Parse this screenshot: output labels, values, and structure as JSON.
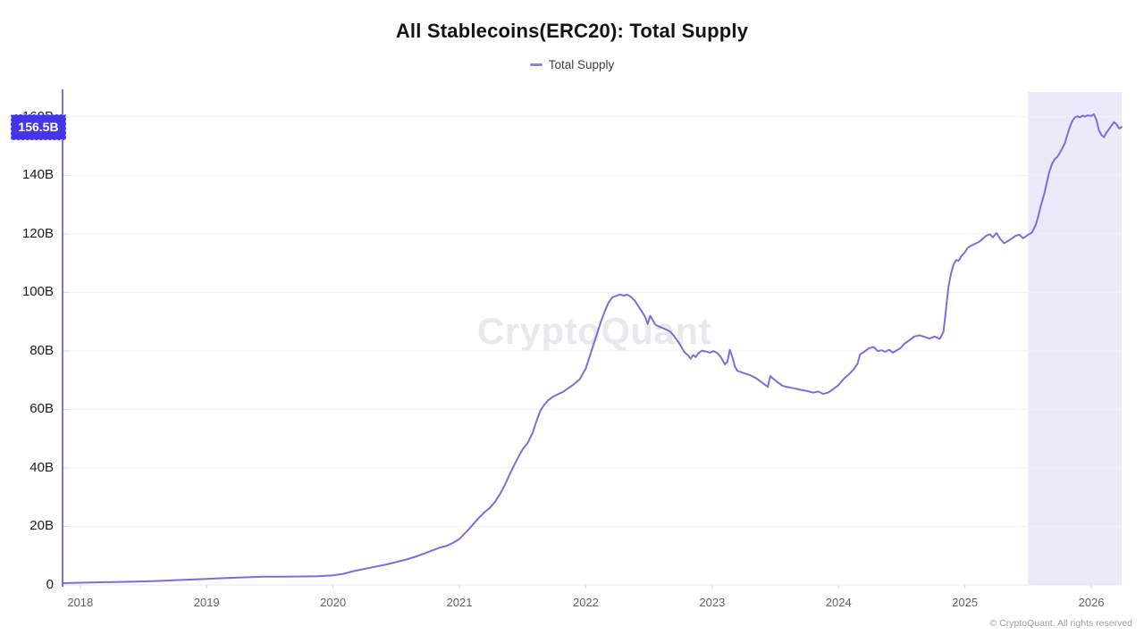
{
  "title": "All Stablecoins(ERC20): Total Supply",
  "legend": {
    "label": "Total Supply",
    "dash_color": "#8a80e8"
  },
  "watermark": "CryptoQuant",
  "footer": "© CryptoQuant. All rights reserved",
  "current_value_badge": {
    "label": "156.5B",
    "value": 156.5,
    "bg": "#4435e8",
    "text_color": "#ffffff"
  },
  "colors": {
    "line": "#7a6fe0",
    "axis_line": "#7d72e2",
    "grid": "#f3f1f5",
    "bottom_line": "#e9e8ee",
    "tick_stub": "#d3d1da",
    "highlight_region": "#ece9fb",
    "y_label": "#1d1d1f",
    "x_label": "#5f6469"
  },
  "chart_data": {
    "type": "line",
    "title": "All Stablecoins(ERC20): Total Supply",
    "unit": "billions (B)",
    "xlabel": "",
    "ylabel": "",
    "grid": "horizontal, very light",
    "legend_position": "top-center",
    "x_domain": [
      2017.86,
      2026.24
    ],
    "y_domain": [
      0,
      169.4
    ],
    "x_ticks": [
      {
        "v": 2018,
        "label": "2018"
      },
      {
        "v": 2019,
        "label": "2019"
      },
      {
        "v": 2020,
        "label": "2020"
      },
      {
        "v": 2021,
        "label": "2021"
      },
      {
        "v": 2022,
        "label": "2022"
      },
      {
        "v": 2023,
        "label": "2023"
      },
      {
        "v": 2024,
        "label": "2024"
      },
      {
        "v": 2025,
        "label": "2025"
      },
      {
        "v": 2026,
        "label": "2026"
      }
    ],
    "y_ticks": [
      {
        "v": 0,
        "label": "0"
      },
      {
        "v": 20,
        "label": "20B"
      },
      {
        "v": 40,
        "label": "40B"
      },
      {
        "v": 60,
        "label": "60B"
      },
      {
        "v": 80,
        "label": "80B"
      },
      {
        "v": 100,
        "label": "100B"
      },
      {
        "v": 120,
        "label": "120B"
      },
      {
        "v": 140,
        "label": "140B"
      },
      {
        "v": 160,
        "label": "160B"
      }
    ],
    "highlight_region": {
      "x_start": 2025.5,
      "x_end": 2026.24,
      "color": "#ece9fb"
    },
    "last_value_label": "156.5B",
    "series": [
      {
        "name": "Total Supply",
        "color": "#7a6fe0",
        "points": [
          [
            2017.86,
            0.6
          ],
          [
            2018,
            0.75
          ],
          [
            2018.2,
            0.95
          ],
          [
            2018.4,
            1.1
          ],
          [
            2018.6,
            1.35
          ],
          [
            2018.8,
            1.7
          ],
          [
            2019,
            2.05
          ],
          [
            2019.15,
            2.35
          ],
          [
            2019.3,
            2.6
          ],
          [
            2019.45,
            2.85
          ],
          [
            2019.6,
            2.8
          ],
          [
            2019.75,
            2.9
          ],
          [
            2019.88,
            3.0
          ],
          [
            2020,
            3.3
          ],
          [
            2020.08,
            3.8
          ],
          [
            2020.16,
            4.7
          ],
          [
            2020.25,
            5.5
          ],
          [
            2020.33,
            6.2
          ],
          [
            2020.42,
            7.0
          ],
          [
            2020.5,
            7.8
          ],
          [
            2020.58,
            8.7
          ],
          [
            2020.65,
            9.6
          ],
          [
            2020.72,
            10.7
          ],
          [
            2020.78,
            11.7
          ],
          [
            2020.84,
            12.7
          ],
          [
            2020.9,
            13.4
          ],
          [
            2020.95,
            14.4
          ],
          [
            2021,
            15.7
          ],
          [
            2021.04,
            17.5
          ],
          [
            2021.08,
            19.3
          ],
          [
            2021.12,
            21.3
          ],
          [
            2021.16,
            23.2
          ],
          [
            2021.2,
            24.9
          ],
          [
            2021.24,
            26.3
          ],
          [
            2021.28,
            28.3
          ],
          [
            2021.32,
            31
          ],
          [
            2021.36,
            34.2
          ],
          [
            2021.4,
            38
          ],
          [
            2021.44,
            41.5
          ],
          [
            2021.47,
            44
          ],
          [
            2021.5,
            46.3
          ],
          [
            2021.54,
            48.5
          ],
          [
            2021.58,
            52
          ],
          [
            2021.61,
            56
          ],
          [
            2021.64,
            59.5
          ],
          [
            2021.67,
            61.5
          ],
          [
            2021.7,
            63
          ],
          [
            2021.74,
            64.3
          ],
          [
            2021.78,
            65.2
          ],
          [
            2021.82,
            66
          ],
          [
            2021.86,
            67.2
          ],
          [
            2021.9,
            68.4
          ],
          [
            2021.95,
            70.2
          ],
          [
            2022,
            74
          ],
          [
            2022.03,
            78
          ],
          [
            2022.06,
            82
          ],
          [
            2022.09,
            86
          ],
          [
            2022.12,
            90
          ],
          [
            2022.15,
            93.5
          ],
          [
            2022.18,
            96.5
          ],
          [
            2022.21,
            98.3
          ],
          [
            2022.24,
            98.8
          ],
          [
            2022.27,
            99.3
          ],
          [
            2022.3,
            98.9
          ],
          [
            2022.33,
            99.2
          ],
          [
            2022.36,
            98.4
          ],
          [
            2022.39,
            97
          ],
          [
            2022.42,
            95
          ],
          [
            2022.45,
            93
          ],
          [
            2022.47,
            91.5
          ],
          [
            2022.49,
            89.2
          ],
          [
            2022.51,
            92
          ],
          [
            2022.53,
            90.5
          ],
          [
            2022.55,
            89
          ],
          [
            2022.58,
            88.3
          ],
          [
            2022.61,
            87.8
          ],
          [
            2022.64,
            87.2
          ],
          [
            2022.67,
            86.5
          ],
          [
            2022.7,
            85
          ],
          [
            2022.74,
            82.5
          ],
          [
            2022.78,
            79.6
          ],
          [
            2022.81,
            78.4
          ],
          [
            2022.83,
            77.3
          ],
          [
            2022.85,
            78.6
          ],
          [
            2022.87,
            77.9
          ],
          [
            2022.89,
            79.2
          ],
          [
            2022.92,
            80.1
          ],
          [
            2022.95,
            79.8
          ],
          [
            2022.98,
            79.4
          ],
          [
            2023.01,
            79.9
          ],
          [
            2023.04,
            79.3
          ],
          [
            2023.07,
            77.8
          ],
          [
            2023.1,
            75.4
          ],
          [
            2023.12,
            76.2
          ],
          [
            2023.14,
            80.4
          ],
          [
            2023.16,
            77.8
          ],
          [
            2023.18,
            74.6
          ],
          [
            2023.2,
            73.2
          ],
          [
            2023.25,
            72.4
          ],
          [
            2023.3,
            71.7
          ],
          [
            2023.35,
            70.6
          ],
          [
            2023.4,
            69
          ],
          [
            2023.44,
            67.7
          ],
          [
            2023.46,
            71.4
          ],
          [
            2023.48,
            70.6
          ],
          [
            2023.52,
            69.2
          ],
          [
            2023.56,
            68
          ],
          [
            2023.6,
            67.6
          ],
          [
            2023.65,
            67.2
          ],
          [
            2023.7,
            66.7
          ],
          [
            2023.75,
            66.3
          ],
          [
            2023.8,
            65.7
          ],
          [
            2023.84,
            66.1
          ],
          [
            2023.88,
            65.3
          ],
          [
            2023.92,
            65.8
          ],
          [
            2023.96,
            67
          ],
          [
            2024,
            68.3
          ],
          [
            2024.04,
            70.4
          ],
          [
            2024.08,
            71.9
          ],
          [
            2024.12,
            73.7
          ],
          [
            2024.15,
            75.6
          ],
          [
            2024.17,
            78.8
          ],
          [
            2024.2,
            79.6
          ],
          [
            2024.24,
            80.9
          ],
          [
            2024.28,
            81.3
          ],
          [
            2024.31,
            79.9
          ],
          [
            2024.34,
            80.2
          ],
          [
            2024.37,
            79.7
          ],
          [
            2024.4,
            80.4
          ],
          [
            2024.43,
            79.4
          ],
          [
            2024.46,
            80.2
          ],
          [
            2024.49,
            80.9
          ],
          [
            2024.52,
            82.4
          ],
          [
            2024.56,
            83.6
          ],
          [
            2024.6,
            84.9
          ],
          [
            2024.64,
            85.3
          ],
          [
            2024.68,
            84.8
          ],
          [
            2024.72,
            84.2
          ],
          [
            2024.76,
            84.9
          ],
          [
            2024.8,
            84.1
          ],
          [
            2024.83,
            86.5
          ],
          [
            2024.85,
            94
          ],
          [
            2024.87,
            102
          ],
          [
            2024.89,
            106.5
          ],
          [
            2024.91,
            109.5
          ],
          [
            2024.93,
            111
          ],
          [
            2024.95,
            110.8
          ],
          [
            2024.97,
            112.3
          ],
          [
            2025,
            113.7
          ],
          [
            2025.02,
            115.2
          ],
          [
            2025.05,
            116
          ],
          [
            2025.08,
            116.6
          ],
          [
            2025.11,
            117.2
          ],
          [
            2025.14,
            118.3
          ],
          [
            2025.17,
            119.4
          ],
          [
            2025.2,
            119.8
          ],
          [
            2025.22,
            118.8
          ],
          [
            2025.25,
            120.3
          ],
          [
            2025.28,
            118.2
          ],
          [
            2025.31,
            116.8
          ],
          [
            2025.34,
            117.5
          ],
          [
            2025.37,
            118.4
          ],
          [
            2025.4,
            119.3
          ],
          [
            2025.43,
            119.7
          ],
          [
            2025.46,
            118.5
          ],
          [
            2025.5,
            119.7
          ],
          [
            2025.53,
            120.4
          ],
          [
            2025.56,
            123
          ],
          [
            2025.58,
            126
          ],
          [
            2025.6,
            129.5
          ],
          [
            2025.63,
            134
          ],
          [
            2025.65,
            138
          ],
          [
            2025.67,
            141.5
          ],
          [
            2025.69,
            144
          ],
          [
            2025.71,
            145.5
          ],
          [
            2025.73,
            146.3
          ],
          [
            2025.75,
            147.6
          ],
          [
            2025.77,
            149.2
          ],
          [
            2025.79,
            151
          ],
          [
            2025.81,
            153.8
          ],
          [
            2025.83,
            156.5
          ],
          [
            2025.85,
            158.7
          ],
          [
            2025.87,
            159.8
          ],
          [
            2025.89,
            160.2
          ],
          [
            2025.91,
            159.8
          ],
          [
            2025.93,
            160.4
          ],
          [
            2025.95,
            160.1
          ],
          [
            2025.97,
            160.5
          ],
          [
            2026,
            160.3
          ],
          [
            2026.02,
            160.9
          ],
          [
            2026.04,
            159
          ],
          [
            2026.06,
            155.5
          ],
          [
            2026.08,
            153.8
          ],
          [
            2026.1,
            153
          ],
          [
            2026.12,
            154.6
          ],
          [
            2026.14,
            155.8
          ],
          [
            2026.16,
            157
          ],
          [
            2026.18,
            158.2
          ],
          [
            2026.2,
            157.4
          ],
          [
            2026.22,
            156
          ],
          [
            2026.24,
            156.5
          ]
        ]
      }
    ]
  }
}
